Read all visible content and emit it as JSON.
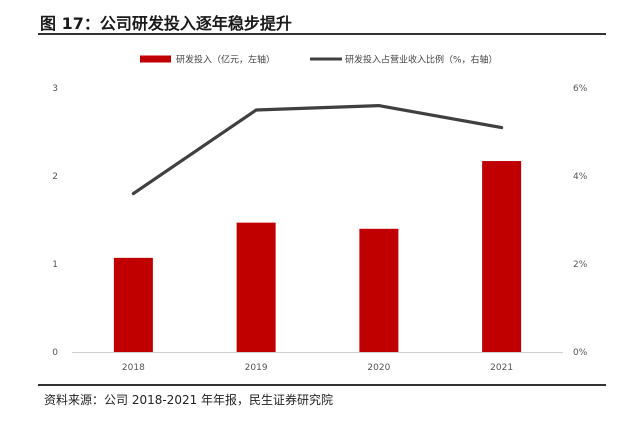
{
  "header": {
    "title": "图 17：公司研发投入逐年稳步提升"
  },
  "footer": {
    "source": "资料来源：公司 2018-2021 年年报，民生证券研究院"
  },
  "chart_data": {
    "type": "bar",
    "categories": [
      "2018",
      "2019",
      "2020",
      "2021"
    ],
    "series": [
      {
        "name": "研发投入（亿元，左轴）",
        "type": "bar",
        "axis": "left",
        "color": "#C00000",
        "values": [
          1.07,
          1.47,
          1.4,
          2.17
        ]
      },
      {
        "name": "研发投入占营业收入比例（%，右轴）",
        "type": "line",
        "axis": "right",
        "color": "#404040",
        "values": [
          3.6,
          5.5,
          5.6,
          5.1
        ]
      }
    ],
    "y_left": {
      "lim": [
        0,
        3
      ],
      "ticks": [
        "0",
        "1",
        "2",
        "3"
      ]
    },
    "y_right": {
      "lim": [
        0,
        6
      ],
      "ticks": [
        "0%",
        "2%",
        "4%",
        "6%"
      ]
    },
    "grid": false,
    "legend_position": "top-center"
  }
}
